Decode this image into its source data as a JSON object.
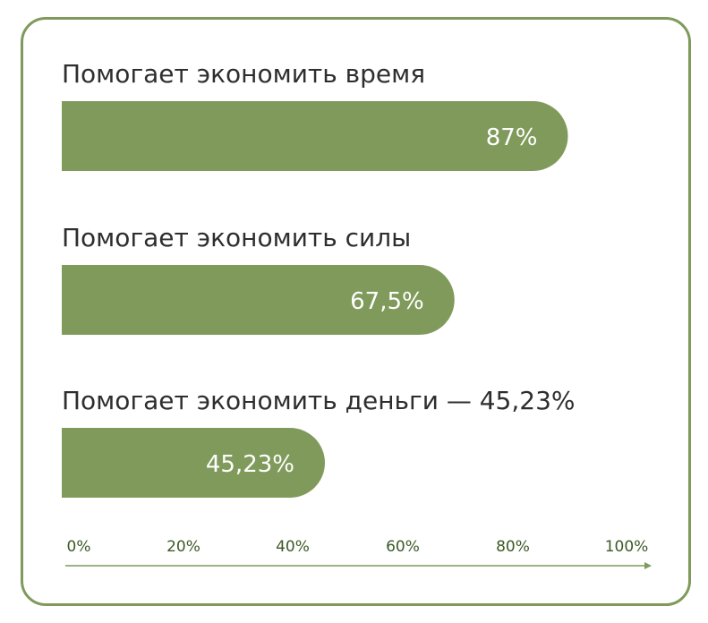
{
  "chart_data": {
    "type": "bar",
    "orientation": "horizontal",
    "categories": [
      "Помогает экономить время",
      "Помогает экономить силы",
      "Помогает экономить деньги — 45,23%"
    ],
    "values": [
      87,
      67.5,
      45.23
    ],
    "value_labels": [
      "87%",
      "67,5%",
      "45,23%"
    ],
    "xlim": [
      0,
      100
    ],
    "x_ticks": [
      "0%",
      "20%",
      "40%",
      "60%",
      "80%",
      "100%"
    ],
    "grid": false,
    "colors": {
      "bar": "#7f9a5a",
      "border": "#7f9a5a",
      "axis": "#7f9a5a",
      "tick_text": "#3c5a25",
      "category_text": "#2e2e2e",
      "value_text": "#ffffff"
    }
  }
}
